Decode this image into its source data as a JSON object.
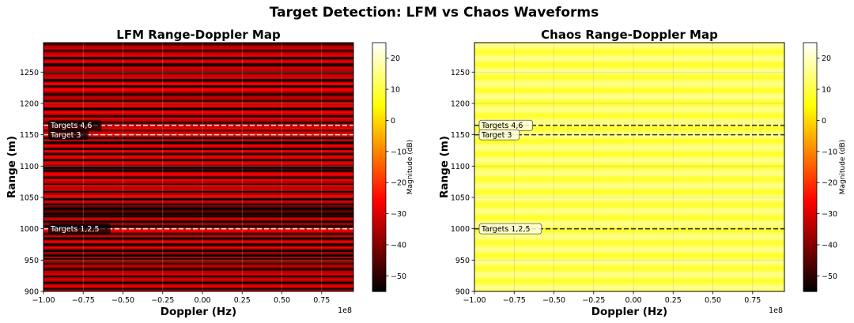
{
  "chart_data": {
    "suptitle": "Target Detection: LFM vs Chaos Waveforms",
    "panels": [
      {
        "id": "lfm",
        "type": "heatmap",
        "title": "LFM Range-Doppler Map",
        "xlabel": "Doppler (Hz)",
        "ylabel": "Range (m)",
        "x_offset_label": "1e8",
        "xlim": [
          -1.0,
          0.95
        ],
        "ylim": [
          900,
          1297
        ],
        "xticks": [
          -1.0,
          -0.75,
          -0.5,
          -0.25,
          0.0,
          0.25,
          0.5,
          0.75
        ],
        "xtick_labels": [
          "−1.00",
          "−0.75",
          "−0.50",
          "−0.25",
          "0.00",
          "0.25",
          "0.50",
          "0.75"
        ],
        "yticks": [
          900,
          950,
          1000,
          1050,
          1100,
          1150,
          1200,
          1250
        ],
        "ytick_labels": [
          "900",
          "950",
          "1000",
          "1050",
          "1100",
          "1150",
          "1200",
          "1250"
        ],
        "colormap": "hot",
        "clim": [
          -55,
          25
        ],
        "colorbar_label": "Magnitude (dB)",
        "colorbar_ticks": [
          20,
          10,
          0,
          -10,
          -20,
          -30,
          -40,
          -50
        ],
        "colorbar_tick_labels": [
          "20",
          "10",
          "0",
          "−10",
          "−20",
          "−30",
          "−40",
          "−50"
        ],
        "row_profile": {
          "base_db": -30,
          "dark_bands": [
            [
              1295,
              3
            ],
            [
              1285,
              3
            ],
            [
              1273,
              4
            ],
            [
              1262,
              5
            ],
            [
              1250,
              3
            ],
            [
              1238,
              4
            ],
            [
              1228,
              3
            ],
            [
              1215,
              4
            ],
            [
              1205,
              3
            ],
            [
              1192,
              4
            ],
            [
              1180,
              3
            ],
            [
              1170,
              3
            ],
            [
              1158,
              2
            ],
            [
              1145,
              3
            ],
            [
              1138,
              4
            ],
            [
              1128,
              3
            ],
            [
              1120,
              3
            ],
            [
              1110,
              3
            ],
            [
              1098,
              5
            ],
            [
              1093,
              3
            ],
            [
              1082,
              3
            ],
            [
              1072,
              2
            ],
            [
              1060,
              3
            ],
            [
              1048,
              4
            ],
            [
              1040,
              3
            ],
            [
              1033,
              6
            ],
            [
              1025,
              5
            ],
            [
              1020,
              3
            ],
            [
              1012,
              4
            ],
            [
              1005,
              4
            ],
            [
              992,
              3
            ],
            [
              985,
              4
            ],
            [
              975,
              4
            ],
            [
              965,
              4
            ],
            [
              958,
              4
            ],
            [
              952,
              3
            ],
            [
              945,
              3
            ],
            [
              936,
              4
            ],
            [
              925,
              3
            ],
            [
              915,
              4
            ],
            [
              905,
              3
            ]
          ]
        },
        "target_lines": [
          {
            "range": 1165,
            "label": "Targets 4,6"
          },
          {
            "range": 1150,
            "label": "Target 3"
          },
          {
            "range": 1000,
            "label": "Targets 1,2,5"
          }
        ],
        "line_color": "#dddddd",
        "annot_style": "dark"
      },
      {
        "id": "chaos",
        "type": "heatmap",
        "title": "Chaos Range-Doppler Map",
        "xlabel": "Doppler (Hz)",
        "ylabel": "Range (m)",
        "x_offset_label": "1e8",
        "xlim": [
          -1.0,
          0.95
        ],
        "ylim": [
          900,
          1297
        ],
        "xticks": [
          -1.0,
          -0.75,
          -0.5,
          -0.25,
          0.0,
          0.25,
          0.5,
          0.75
        ],
        "xtick_labels": [
          "−1.00",
          "−0.75",
          "−0.50",
          "−0.25",
          "0.00",
          "0.25",
          "0.50",
          "0.75"
        ],
        "yticks": [
          900,
          950,
          1000,
          1050,
          1100,
          1150,
          1200,
          1250
        ],
        "ytick_labels": [
          "900",
          "950",
          "1000",
          "1050",
          "1100",
          "1150",
          "1200",
          "1250"
        ],
        "colormap": "hot",
        "clim": [
          -55,
          25
        ],
        "colorbar_label": "Magnitude (dB)",
        "colorbar_ticks": [
          20,
          10,
          0,
          -10,
          -20,
          -30,
          -40,
          -50
        ],
        "colorbar_tick_labels": [
          "20",
          "10",
          "0",
          "−10",
          "−20",
          "−30",
          "−40",
          "−50"
        ],
        "row_profile": {
          "base_db": 12,
          "stripe_period": 2.2,
          "stripe_depth": 4
        },
        "target_lines": [
          {
            "range": 1165,
            "label": "Targets 4,6"
          },
          {
            "range": 1150,
            "label": "Target 3"
          },
          {
            "range": 1000,
            "label": "Targets 1,2,5"
          }
        ],
        "line_color": "#333333",
        "annot_style": "light"
      }
    ]
  }
}
